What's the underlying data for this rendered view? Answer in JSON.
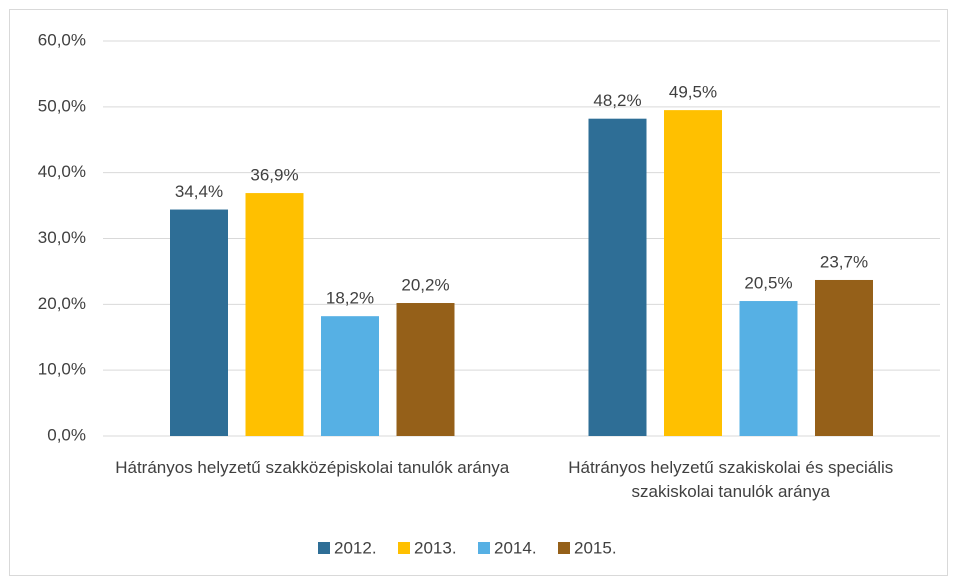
{
  "chart_data": {
    "type": "bar",
    "categories": [
      "Hátrányos helyzetű szakközépiskolai tanulók aránya",
      "Hátrányos helyzetű szakiskolai és speciális szakiskolai tanulók aránya"
    ],
    "series": [
      {
        "name": "2012.",
        "color": "#2e6e96",
        "values": [
          34.4,
          48.2
        ],
        "value_labels": [
          "34,4%",
          "48,2%"
        ]
      },
      {
        "name": "2013.",
        "color": "#ffc000",
        "values": [
          36.9,
          49.5
        ],
        "value_labels": [
          "36,9%",
          "49,5%"
        ]
      },
      {
        "name": "2014.",
        "color": "#56b0e4",
        "values": [
          18.2,
          20.5
        ],
        "value_labels": [
          "18,2%",
          "20,5%"
        ]
      },
      {
        "name": "2015.",
        "color": "#956019",
        "values": [
          20.2,
          23.7
        ],
        "value_labels": [
          "20,2%",
          "23,7%"
        ]
      }
    ],
    "ylim": [
      0,
      60
    ],
    "yticks": [
      {
        "value": 0,
        "label": "0,0%"
      },
      {
        "value": 10,
        "label": "10,0%"
      },
      {
        "value": 20,
        "label": "20,0%"
      },
      {
        "value": 30,
        "label": "30,0%"
      },
      {
        "value": 40,
        "label": "40,0%"
      },
      {
        "value": 50,
        "label": "50,0%"
      },
      {
        "value": 60,
        "label": "60,0%"
      }
    ],
    "grid": true,
    "legend": "bottom"
  }
}
